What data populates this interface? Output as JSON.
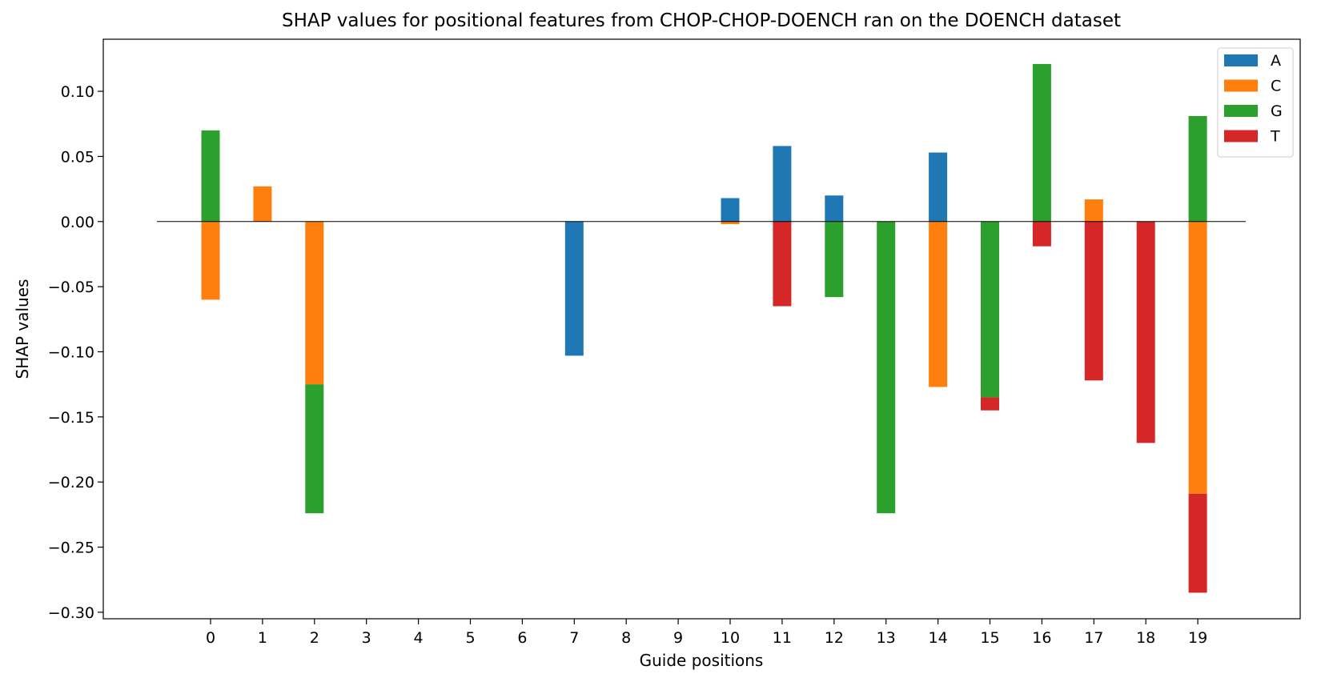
{
  "chart_data": {
    "type": "bar",
    "stacked": true,
    "title": "SHAP values for positional features from CHOP-CHOP-DOENCH ran on the DOENCH dataset",
    "xlabel": "Guide positions",
    "ylabel": "SHAP values",
    "categories": [
      "0",
      "1",
      "2",
      "3",
      "4",
      "5",
      "6",
      "7",
      "8",
      "9",
      "10",
      "11",
      "12",
      "13",
      "14",
      "15",
      "16",
      "17",
      "18",
      "19"
    ],
    "ylim": [
      -0.305,
      0.14
    ],
    "yticks": [
      0.1,
      0.05,
      0.0,
      -0.05,
      -0.1,
      -0.15,
      -0.2,
      -0.25,
      -0.3
    ],
    "ytick_labels": [
      "0.10",
      "0.05",
      "0.00",
      "−0.05",
      "−0.10",
      "−0.15",
      "−0.20",
      "−0.25",
      "−0.30"
    ],
    "grid": false,
    "legend_position": "top-right",
    "zero_line": true,
    "series": [
      {
        "name": "A",
        "color": "#1f77b4",
        "values": [
          0,
          0,
          0,
          0,
          0,
          0,
          0,
          -0.103,
          0,
          0,
          0.018,
          0.058,
          0.02,
          0,
          0.053,
          0,
          0,
          0,
          0,
          0
        ]
      },
      {
        "name": "C",
        "color": "#ff7f0e",
        "values": [
          -0.06,
          0.027,
          -0.125,
          0,
          0,
          0,
          0,
          0,
          0,
          0,
          -0.002,
          0,
          0,
          0,
          -0.127,
          0,
          0,
          0.017,
          0,
          -0.209
        ]
      },
      {
        "name": "G",
        "color": "#2ca02c",
        "values": [
          0.07,
          0,
          -0.099,
          0,
          0,
          0,
          0,
          0,
          0,
          0,
          0,
          0,
          -0.058,
          -0.224,
          0,
          -0.135,
          0.121,
          0,
          0,
          0.081
        ]
      },
      {
        "name": "T",
        "color": "#d62728",
        "values": [
          0,
          0,
          0,
          0,
          0,
          0,
          0,
          0,
          0,
          0,
          0,
          -0.065,
          0,
          0,
          0,
          -0.01,
          -0.019,
          -0.122,
          -0.17,
          -0.076
        ]
      }
    ]
  }
}
